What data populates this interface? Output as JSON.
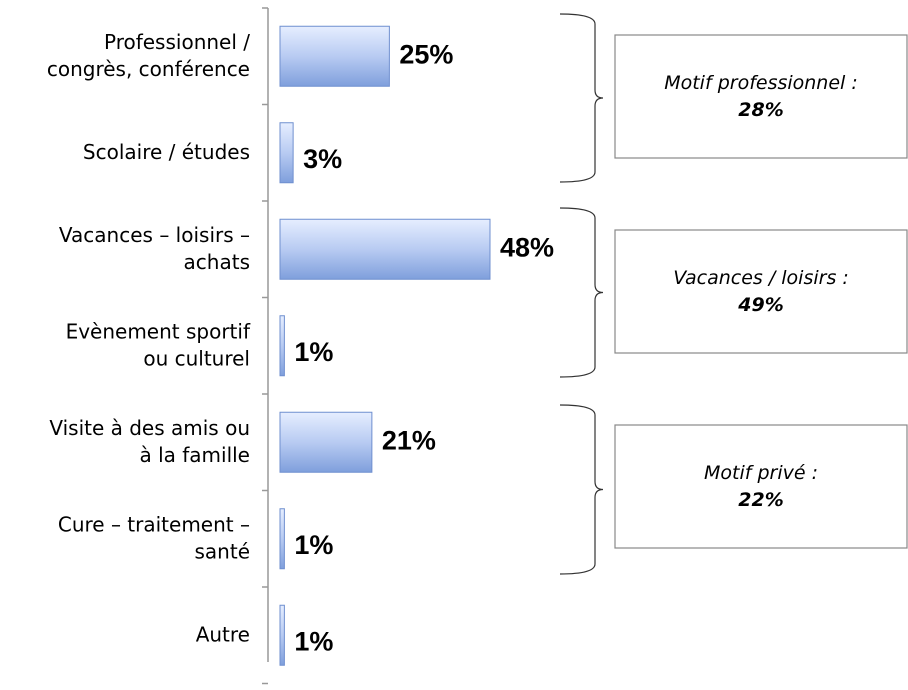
{
  "chart_data": {
    "type": "hbar",
    "categories": [
      "Professionnel /\ncongrès, conférence",
      "Scolaire / études",
      "Vacances – loisirs –\nachats",
      "Evènement sportif\nou culturel",
      "Visite à des amis ou\nà la famille",
      "Cure – traitement –\nsanté",
      "Autre"
    ],
    "values": [
      25,
      3,
      48,
      1,
      21,
      1,
      1
    ],
    "value_labels": [
      "25%",
      "3%",
      "48%",
      "1%",
      "21%",
      "1%",
      "1%"
    ],
    "color": "#9fb8ea",
    "annotations": [
      {
        "text": "Motif professionnel :",
        "value": "28%"
      },
      {
        "text": "Vacances / loisirs :",
        "value": "49%"
      },
      {
        "text": "Motif privé :",
        "value": "22%"
      }
    ]
  }
}
